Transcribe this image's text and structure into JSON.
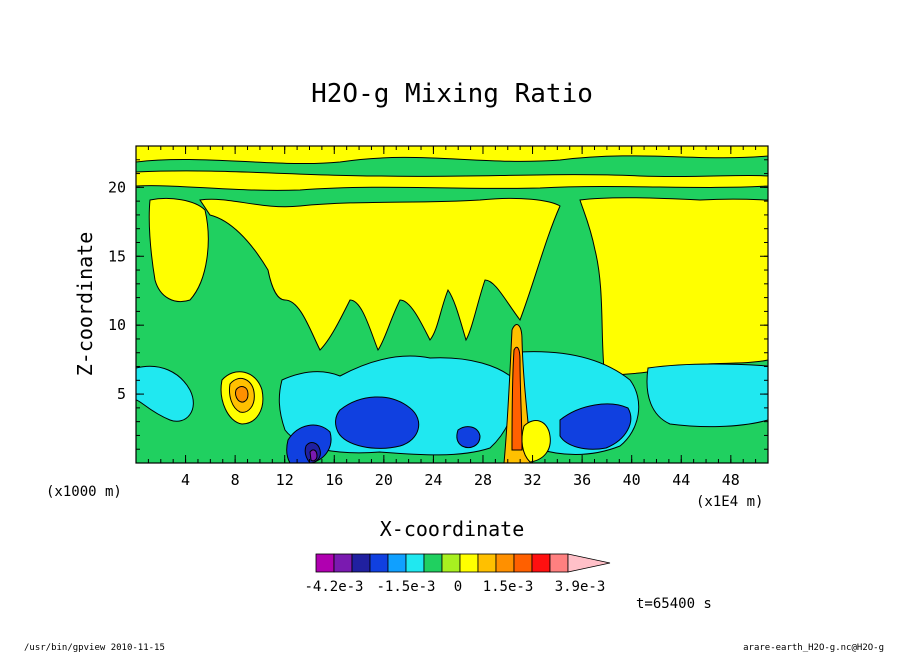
{
  "chart_data": {
    "type": "heatmap",
    "title": "H2O-g Mixing Ratio",
    "xlabel": "X-coordinate",
    "ylabel": "Z-coordinate",
    "x_units_left": "(x1000 m)",
    "x_units_right": "(x1E4 m)",
    "xlim": [
      0,
      51
    ],
    "ylim": [
      0,
      23
    ],
    "x_ticks": [
      "4",
      "8",
      "12",
      "16",
      "20",
      "24",
      "28",
      "32",
      "36",
      "40",
      "44",
      "48"
    ],
    "y_ticks": [
      "5",
      "10",
      "15",
      "20"
    ],
    "colorbar": {
      "colors": [
        "#b000b0",
        "#7a1ab0",
        "#2020a0",
        "#1040e0",
        "#10a0ff",
        "#20e8f0",
        "#20d060",
        "#a8f020",
        "#ffff00",
        "#ffc000",
        "#ff9000",
        "#ff6000",
        "#ff1010",
        "#ff8080",
        "#ffc0c8"
      ],
      "labels": [
        "-4.2e-3",
        "-1.5e-3",
        "0",
        "1.5e-3",
        "3.9e-3"
      ]
    },
    "time_label": "t=65400 s",
    "regions": [
      {
        "level": "positive-low",
        "color": "#ffff00",
        "desc": "upper troposphere bands and wide plume above x=10-30"
      },
      {
        "level": "zero",
        "color": "#20d060",
        "desc": "background"
      },
      {
        "level": "negative-low",
        "color": "#20e8f0",
        "desc": "boundary layer below z=6"
      },
      {
        "level": "negative-mid",
        "color": "#1040e0",
        "desc": "near-surface pockets"
      },
      {
        "level": "positive-mid",
        "color": "#ffc000",
        "desc": "small cells near x=8 and x=31"
      }
    ]
  },
  "footer": {
    "left": "/usr/bin/gpview  2010-11-15",
    "right": "arare-earth_H2O-g.nc@H2O-g"
  }
}
